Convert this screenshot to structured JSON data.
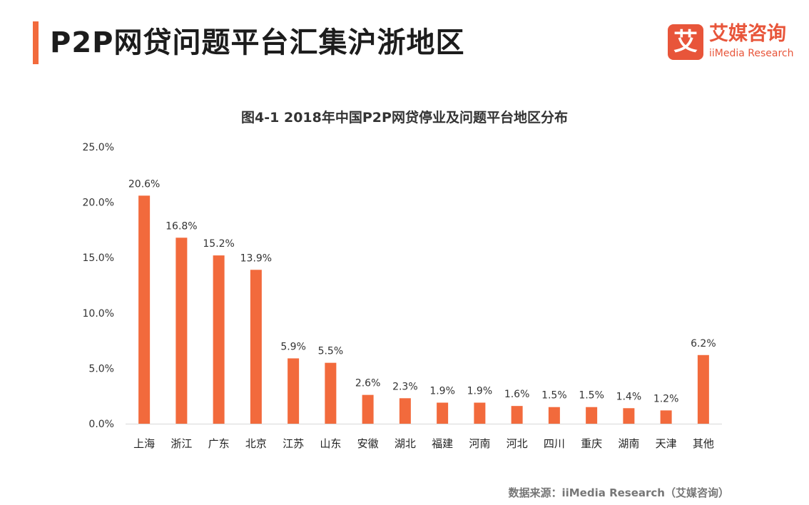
{
  "header": {
    "title": "P2P网贷问题平台汇集沪浙地区"
  },
  "logo": {
    "glyph": "艾",
    "name_cn": "艾媒咨询",
    "name_en": "iiMedia Research"
  },
  "source": "数据来源：iiMedia Research（艾媒咨询）",
  "colors": {
    "bar": "#f26a3c",
    "accent": "#e8553a"
  },
  "chart_data": {
    "type": "bar",
    "title": "图4-1 2018年中国P2P网贷停业及问题平台地区分布",
    "categories": [
      "上海",
      "浙江",
      "广东",
      "北京",
      "江苏",
      "山东",
      "安徽",
      "湖北",
      "福建",
      "河南",
      "河北",
      "四川",
      "重庆",
      "湖南",
      "天津",
      "其他"
    ],
    "values": [
      20.6,
      16.8,
      15.2,
      13.9,
      5.9,
      5.5,
      2.6,
      2.3,
      1.9,
      1.9,
      1.6,
      1.5,
      1.5,
      1.4,
      1.2,
      6.2
    ],
    "value_labels": [
      "20.6%",
      "16.8%",
      "15.2%",
      "13.9%",
      "5.9%",
      "5.5%",
      "2.6%",
      "2.3%",
      "1.9%",
      "1.9%",
      "1.6%",
      "1.5%",
      "1.5%",
      "1.4%",
      "1.2%",
      "6.2%"
    ],
    "yticks": [
      0,
      5,
      10,
      15,
      20,
      25
    ],
    "ytick_labels": [
      "0.0%",
      "5.0%",
      "10.0%",
      "15.0%",
      "20.0%",
      "25.0%"
    ],
    "ylim": [
      0,
      25
    ],
    "xlabel": "",
    "ylabel": "",
    "grid": false,
    "legend": "none"
  }
}
